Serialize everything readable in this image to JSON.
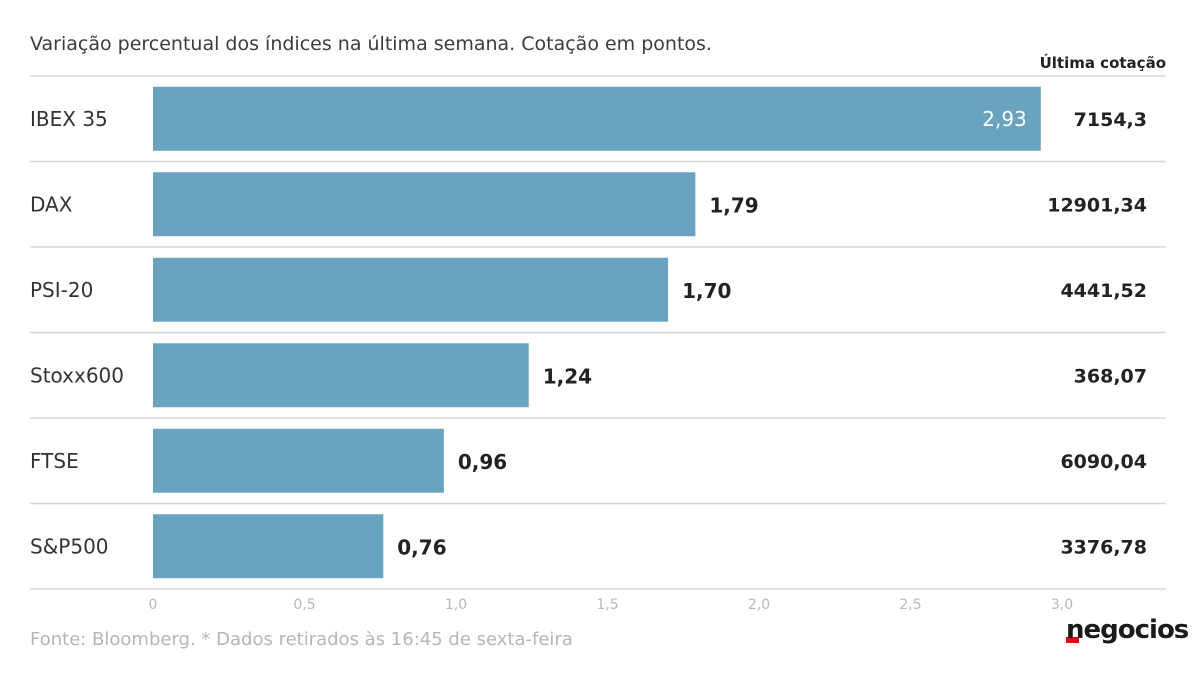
{
  "subtitle": "Variação percentual dos índices na última semana. Cotação em pontos.",
  "quote_header": "Última cotação",
  "source": "Fonte: Bloomberg.  * Dados retirados às 16:45 de sexta-feira",
  "logo_text": "negocios",
  "colors": {
    "bar": "#6aa3c0",
    "logo_accent": "#e30613"
  },
  "chart_data": {
    "type": "bar",
    "orientation": "horizontal",
    "categories": [
      "IBEX 35",
      "DAX",
      "PSI-20",
      "Stoxx600",
      "FTSE",
      "S&P500"
    ],
    "values": [
      2.93,
      1.79,
      1.7,
      1.24,
      0.96,
      0.76
    ],
    "value_labels": [
      "2,93",
      "1,79",
      "1,70",
      "1,24",
      "0,96",
      "0,76"
    ],
    "last_quote": [
      "7154,3",
      "12901,34",
      "4441,52",
      "368,07",
      "6090,04",
      "3376,78"
    ],
    "xlim": [
      0,
      3.0
    ],
    "ticks": [
      0,
      0.5,
      1.0,
      1.5,
      2.0,
      2.5,
      3.0
    ],
    "tick_labels": [
      "0",
      "0,5",
      "1,0",
      "1,5",
      "2,0",
      "2,5",
      "3,0"
    ],
    "grid": false,
    "legend": "none"
  }
}
